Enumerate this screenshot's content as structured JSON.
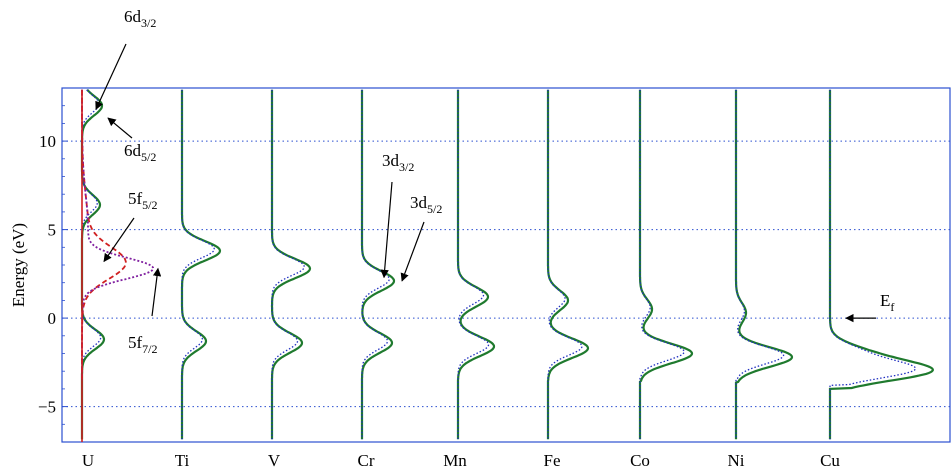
{
  "chart_data": {
    "type": "line",
    "ylabel": "Energy (eV)",
    "ylim": [
      -7,
      13
    ],
    "yticks": [
      -5,
      0,
      5,
      10
    ],
    "ytick_labels": [
      "−5",
      "0",
      "5",
      "10"
    ],
    "grid": "horizontal dotted",
    "categories": [
      "U",
      "Ti",
      "V",
      "Cr",
      "Mn",
      "Fe",
      "Co",
      "Ni",
      "Cu"
    ],
    "colors": {
      "frame": "#2b4fd0",
      "grid": "#2b4fd0",
      "total": "#1f7a2e",
      "dotted": "#2030c0",
      "f52": "#d02020",
      "f72": "#8020a0",
      "text": "#000000"
    },
    "series": [
      {
        "category": "U",
        "peaks": [
          {
            "e": -1.2,
            "h": 0.55
          },
          {
            "e": 6.4,
            "h": 0.45
          },
          {
            "e": 12.0,
            "h": 0.5
          }
        ]
      },
      {
        "category": "Ti",
        "peaks": [
          {
            "e": -1.3,
            "h": 0.6
          },
          {
            "e": 3.8,
            "h": 0.95
          }
        ]
      },
      {
        "category": "V",
        "peaks": [
          {
            "e": -1.4,
            "h": 0.75
          },
          {
            "e": 2.8,
            "h": 0.95
          }
        ]
      },
      {
        "category": "Cr",
        "peaks": [
          {
            "e": -1.4,
            "h": 0.75
          },
          {
            "e": 2.1,
            "h": 0.8
          }
        ]
      },
      {
        "category": "Mn",
        "peaks": [
          {
            "e": -1.6,
            "h": 0.9
          },
          {
            "e": 1.2,
            "h": 0.75
          }
        ]
      },
      {
        "category": "Fe",
        "peaks": [
          {
            "e": -1.7,
            "h": 1.0
          },
          {
            "e": 1.0,
            "h": 0.5
          }
        ]
      },
      {
        "category": "Co",
        "peaks": [
          {
            "e": -2.0,
            "h": 1.3
          },
          {
            "e": 0.5,
            "h": 0.3
          }
        ]
      },
      {
        "category": "Ni",
        "peaks": [
          {
            "e": -2.2,
            "h": 1.4
          },
          {
            "e": 0.3,
            "h": 0.25
          }
        ]
      },
      {
        "category": "Cu",
        "peaks": [
          {
            "e": -3.0,
            "h": 2.4
          },
          {
            "e": -2.0,
            "h": 0.8
          }
        ]
      }
    ],
    "u_partials": [
      {
        "name": "5f5/2",
        "peak": 3.1,
        "h": 1.0
      },
      {
        "name": "5f7/2",
        "peak": 2.8,
        "h": 1.7
      }
    ],
    "annotations": [
      {
        "id": "d32",
        "base": "6d",
        "sub": "3/2",
        "target_e": 11.8
      },
      {
        "id": "d52",
        "base": "6d",
        "sub": "5/2",
        "target_e": 11.3
      },
      {
        "id": "f52",
        "base": "5f",
        "sub": "5/2",
        "target_e": 3.2
      },
      {
        "id": "f72",
        "base": "5f",
        "sub": "7/2",
        "target_e": 2.8
      },
      {
        "id": "c32",
        "base": "3d",
        "sub": "3/2",
        "target_e": 2.3
      },
      {
        "id": "c52",
        "base": "3d",
        "sub": "5/2",
        "target_e": 2.1
      },
      {
        "id": "ef",
        "base": "E",
        "sub": "f",
        "target_e": 0.0
      }
    ]
  }
}
